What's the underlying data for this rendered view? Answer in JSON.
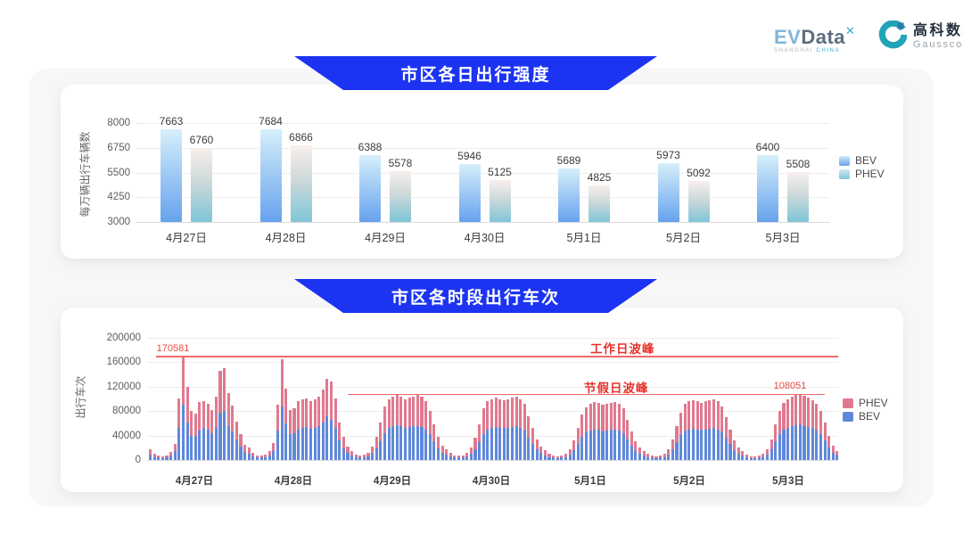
{
  "header": {
    "evdata": {
      "ev": "EV",
      "data": "Data",
      "sup": "✕",
      "subtext_left": "SHANGHAI",
      "subtext_right": "CHINA"
    },
    "gausscode": {
      "cn": "高科数聚",
      "en": "Gausscode"
    }
  },
  "banners": {
    "daily": "市区各日出行强度",
    "hourly": "市区各时段出行车次"
  },
  "colors": {
    "banner_blue": "#1c34f2",
    "bev_gradient_top": "#d6effa",
    "bev_gradient_bottom": "#66a2ee",
    "phev_gradient_top": "#f8efec",
    "phev_gradient_mid": "#cdd9da",
    "phev_gradient_bottom": "#7fc5d7",
    "stack_bev_blue": "#5f88da",
    "stack_phev_pink": "#e0798f",
    "annotation_red": "#e84a44",
    "annotation_line_red": "#ef6a6a"
  },
  "chart_data": [
    {
      "type": "bar",
      "title": "市区各日出行强度",
      "xlabel": "",
      "ylabel": "每万辆出行车辆数",
      "ylim": [
        3000,
        8000
      ],
      "yticks": [
        3000,
        4250,
        5500,
        6750,
        8000
      ],
      "grid": true,
      "legend_position": "right",
      "categories": [
        "4月27日",
        "4月28日",
        "4月29日",
        "4月30日",
        "5月1日",
        "5月2日",
        "5月3日"
      ],
      "series": [
        {
          "name": "BEV",
          "values": [
            7663,
            7684,
            6388,
            5946,
            5689,
            5973,
            6400
          ]
        },
        {
          "name": "PHEV",
          "values": [
            6760,
            6866,
            5578,
            5125,
            4825,
            5092,
            5508
          ]
        }
      ]
    },
    {
      "type": "bar-stacked",
      "title": "市区各时段出行车次",
      "xlabel": "",
      "ylabel": "出行车次",
      "ylim": [
        0,
        200000
      ],
      "yticks": [
        0,
        40000,
        80000,
        120000,
        160000,
        200000
      ],
      "grid": true,
      "legend_position": "right",
      "legend_order": [
        "PHEV",
        "BEV"
      ],
      "categories": [
        "4月27日",
        "4月28日",
        "4月29日",
        "4月30日",
        "5月1日",
        "5月2日",
        "5月3日"
      ],
      "hours_per_day": 24,
      "series": [
        {
          "name": "BEV",
          "values_by_day": [
            [
              9000,
              5000,
              4000,
              3000,
              4000,
              7000,
              14000,
              52000,
              91000,
              62000,
              40000,
              40000,
              48000,
              52000,
              49000,
              44000,
              52000,
              78000,
              80000,
              56000,
              46000,
              33000,
              22000,
              13000
            ],
            [
              10000,
              6000,
              4000,
              4000,
              5000,
              7000,
              15000,
              48000,
              88000,
              60000,
              42000,
              44000,
              50000,
              53000,
              54000,
              51000,
              53000,
              55000,
              62000,
              71000,
              66000,
              52000,
              32000,
              19000
            ],
            [
              11000,
              7000,
              5000,
              4000,
              5000,
              6000,
              11000,
              19000,
              31000,
              44000,
              52000,
              55000,
              57000,
              55000,
              53000,
              54000,
              55000,
              56000,
              54000,
              50000,
              42000,
              30000,
              19000,
              12000
            ],
            [
              9000,
              6000,
              4000,
              4000,
              4000,
              6000,
              10000,
              18000,
              29000,
              43000,
              50000,
              53000,
              54000,
              53000,
              52000,
              53000,
              54000,
              55000,
              52000,
              48000,
              37000,
              26000,
              17000,
              11000
            ],
            [
              8000,
              5000,
              4000,
              3000,
              4000,
              5000,
              9000,
              16000,
              26000,
              38000,
              45000,
              48000,
              50000,
              49000,
              47000,
              48000,
              49000,
              50000,
              48000,
              44000,
              34000,
              23000,
              15000,
              10000
            ],
            [
              8000,
              5000,
              4000,
              3000,
              4000,
              5000,
              9000,
              17000,
              29000,
              41000,
              48000,
              50000,
              51000,
              50000,
              49000,
              50000,
              51000,
              52000,
              50000,
              46000,
              36000,
              26000,
              16000,
              10000
            ],
            [
              7000,
              5000,
              3000,
              3000,
              4000,
              5000,
              9000,
              17000,
              30000,
              42000,
              50000,
              53000,
              55000,
              57000,
              58000,
              56000,
              54000,
              52000,
              48000,
              42000,
              32000,
              20000,
              12000,
              8000
            ]
          ]
        },
        {
          "name": "PHEV",
          "values_by_day": [
            [
              9000,
              5000,
              3000,
              3000,
              4000,
              6000,
              12000,
              49000,
              79581,
              57000,
              40000,
              36000,
              47000,
              45000,
              43000,
              38000,
              52000,
              68000,
              70000,
              53000,
              43000,
              30000,
              21000,
              12000
            ],
            [
              10000,
              6000,
              4000,
              3000,
              4000,
              7000,
              13000,
              42000,
              77000,
              57000,
              40000,
              40000,
              46000,
              47000,
              47000,
              45000,
              47000,
              48000,
              54000,
              62000,
              62000,
              49000,
              30000,
              19000
            ],
            [
              11000,
              7000,
              4000,
              4000,
              4000,
              6000,
              11000,
              19000,
              31000,
              44000,
              48000,
              49000,
              49000,
              48000,
              47000,
              48000,
              49000,
              50000,
              49000,
              46000,
              38000,
              28000,
              19000,
              12000
            ],
            [
              9000,
              6000,
              4000,
              3000,
              4000,
              5000,
              10000,
              18000,
              29000,
              41000,
              46000,
              47000,
              48000,
              47000,
              46000,
              47000,
              48000,
              49000,
              48000,
              44000,
              35000,
              26000,
              17000,
              11000
            ],
            [
              8000,
              5000,
              3000,
              3000,
              3000,
              5000,
              9000,
              16000,
              26000,
              36000,
              41000,
              44000,
              45000,
              44000,
              43000,
              44000,
              45000,
              45000,
              44000,
              40000,
              32000,
              23000,
              15000,
              10000
            ],
            [
              7000,
              5000,
              3000,
              3000,
              3000,
              5000,
              9000,
              17000,
              27000,
              37000,
              44000,
              46000,
              47000,
              46000,
              45000,
              46000,
              47000,
              48000,
              46000,
              42000,
              34000,
              24000,
              16000,
              10000
            ],
            [
              7000,
              4000,
              3000,
              3000,
              3000,
              5000,
              9000,
              17000,
              28000,
              38000,
              44000,
              47000,
              49000,
              49000,
              50051,
              49000,
              48000,
              46000,
              44000,
              38000,
              30000,
              20000,
              12000,
              7000
            ]
          ]
        }
      ],
      "annotations": {
        "workday_peak": {
          "label": "工作日波峰",
          "value": 170581,
          "value_label": "170581"
        },
        "holiday_peak": {
          "label": "节假日波峰",
          "value": 108051,
          "value_label": "108051"
        }
      }
    }
  ]
}
